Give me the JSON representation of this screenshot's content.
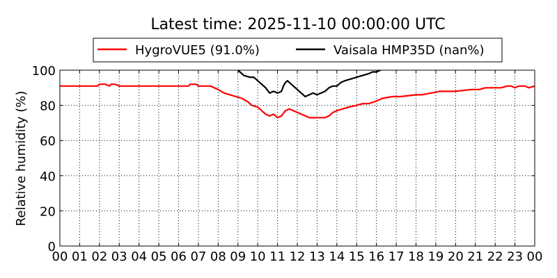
{
  "chart_data": {
    "type": "line",
    "title": "Latest time: 2025-11-10 00:00:00 UTC",
    "xlabel": "",
    "ylabel": "Relative humidity (%)",
    "xlim": [
      0,
      24
    ],
    "ylim": [
      0,
      100
    ],
    "grid": true,
    "legend_position": "top",
    "x_tick_labels": [
      "00",
      "01",
      "02",
      "03",
      "04",
      "05",
      "06",
      "07",
      "08",
      "09",
      "10",
      "11",
      "12",
      "13",
      "14",
      "15",
      "16",
      "17",
      "18",
      "19",
      "20",
      "21",
      "22",
      "23",
      "00"
    ],
    "y_tick_labels": [
      "0",
      "20",
      "40",
      "60",
      "80",
      "100"
    ],
    "series": [
      {
        "name": "HygroVUE5 (91.0%)",
        "color": "#ff0000",
        "x": [
          0,
          1,
          1.9,
          2.0,
          2.3,
          2.5,
          2.6,
          2.8,
          3.0,
          4,
          5,
          6.5,
          6.6,
          6.9,
          7.0,
          7.6,
          7.8,
          8.0,
          8.3,
          8.6,
          8.9,
          9.2,
          9.5,
          9.7,
          10.0,
          10.2,
          10.4,
          10.6,
          10.8,
          11.0,
          11.2,
          11.4,
          11.6,
          11.8,
          12.0,
          12.2,
          12.4,
          12.6,
          12.8,
          13.0,
          13.2,
          13.4,
          13.6,
          13.8,
          14.0,
          14.3,
          14.6,
          15.0,
          15.3,
          15.6,
          15.9,
          16.3,
          16.8,
          17.2,
          18.0,
          18.3,
          19.2,
          20.0,
          20.8,
          21.0,
          21.2,
          21.5,
          22.0,
          22.3,
          22.6,
          22.8,
          23.0,
          23.2,
          23.5,
          23.7,
          24
        ],
        "y": [
          91,
          91,
          91,
          92,
          92,
          91,
          92,
          92,
          91,
          91,
          91,
          91,
          92,
          92,
          91,
          91,
          90,
          89,
          87,
          86,
          85,
          84,
          82,
          80,
          79,
          77,
          75,
          74,
          75,
          73,
          74,
          77,
          78,
          77,
          76,
          75,
          74,
          73,
          73,
          73,
          73,
          73,
          74,
          76,
          77,
          78,
          79,
          80,
          81,
          81,
          82,
          84,
          85,
          85,
          86,
          86,
          88,
          88,
          89,
          89,
          89,
          90,
          90,
          90,
          91,
          91,
          90,
          91,
          91,
          90,
          91
        ]
      },
      {
        "name": "Vaisala HMP35D (nan%)",
        "color": "#000000",
        "x": [
          9.0,
          9.1,
          9.3,
          9.6,
          9.8,
          10.0,
          10.2,
          10.4,
          10.6,
          10.8,
          11.0,
          11.2,
          11.3,
          11.4,
          11.5,
          11.6,
          11.8,
          12.0,
          12.2,
          12.4,
          12.6,
          12.8,
          13.0,
          13.2,
          13.4,
          13.6,
          13.8,
          14.0,
          14.2,
          14.4,
          14.7,
          15.0,
          15.3,
          15.6,
          15.8,
          16.0,
          16.2
        ],
        "y": [
          100,
          99,
          97,
          96,
          96,
          94,
          92,
          90,
          87,
          88,
          87,
          88,
          91,
          93,
          94,
          93,
          91,
          89,
          87,
          85,
          86,
          87,
          86,
          87,
          88,
          90,
          91,
          91,
          93,
          94,
          95,
          96,
          97,
          98,
          99,
          99,
          100
        ]
      }
    ]
  }
}
